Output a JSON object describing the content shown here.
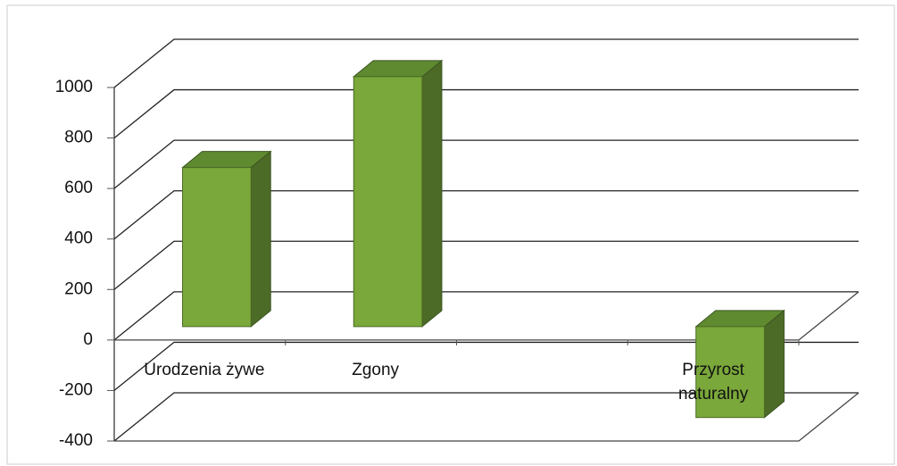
{
  "chart_data": {
    "type": "bar3d",
    "categories": [
      "Urodzenia żywe",
      "Zgony",
      null,
      "Przyrost naturalny"
    ],
    "values": [
      630,
      990,
      null,
      -360
    ],
    "color": "#7aa83a",
    "ylim": [
      -400,
      1000
    ],
    "yticks": [
      -400,
      -200,
      0,
      200,
      400,
      600,
      800,
      1000
    ],
    "grid": true
  }
}
